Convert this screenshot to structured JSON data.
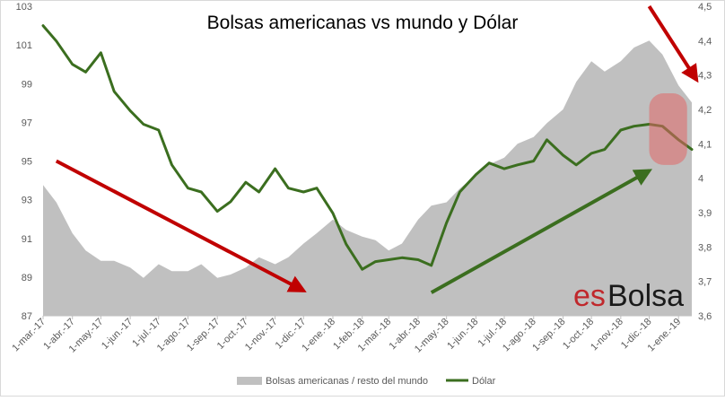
{
  "chart_data": {
    "type": "area",
    "title": "Bolsas americanas vs mundo y Dólar",
    "xlabel": "",
    "ylabel": "",
    "x_tick_labels": [
      "1-mar.-17",
      "1-abr.-17",
      "1-may.-17",
      "1-jun.-17",
      "1-jul.-17",
      "1-ago.-17",
      "1-sep.-17",
      "1-oct.-17",
      "1-nov.-17",
      "1-dic.-17",
      "1-ene.-18",
      "1-feb.-18",
      "1-mar.-18",
      "1-abr.-18",
      "1-may.-18",
      "1-jun.-18",
      "1-jul.-18",
      "1-ago.-18",
      "1-sep.-18",
      "1-oct.-18",
      "1-nov.-18",
      "1-dic.-18",
      "1-ene.-19"
    ],
    "x_range": [
      "1-mar.-17",
      "15-ene.-19"
    ],
    "y_left": {
      "ticks": [
        "87",
        "89",
        "91",
        "93",
        "95",
        "97",
        "99",
        "101",
        "103"
      ],
      "min": 87,
      "max": 103
    },
    "y_right": {
      "ticks": [
        "3,6",
        "3,7",
        "3,8",
        "3,9",
        "4",
        "4,1",
        "4,2",
        "4,3",
        "4,4",
        "4,5"
      ],
      "min": 3.6,
      "max": 4.5
    },
    "grid": false,
    "legend_position": "bottom",
    "series": [
      {
        "name": "Bolsas americanas / resto del mundo",
        "kind": "area",
        "axis": "right",
        "color": "#c0c0c0",
        "points": [
          [
            "2017-03-01",
            3.98
          ],
          [
            "2017-03-15",
            3.93
          ],
          [
            "2017-04-01",
            3.84
          ],
          [
            "2017-04-15",
            3.79
          ],
          [
            "2017-05-01",
            3.76
          ],
          [
            "2017-05-15",
            3.76
          ],
          [
            "2017-06-01",
            3.74
          ],
          [
            "2017-06-15",
            3.71
          ],
          [
            "2017-07-01",
            3.75
          ],
          [
            "2017-07-15",
            3.73
          ],
          [
            "2017-08-01",
            3.73
          ],
          [
            "2017-08-15",
            3.75
          ],
          [
            "2017-09-01",
            3.71
          ],
          [
            "2017-09-15",
            3.72
          ],
          [
            "2017-10-01",
            3.74
          ],
          [
            "2017-10-15",
            3.77
          ],
          [
            "2017-11-01",
            3.75
          ],
          [
            "2017-11-15",
            3.77
          ],
          [
            "2017-12-01",
            3.81
          ],
          [
            "2017-12-15",
            3.84
          ],
          [
            "2018-01-01",
            3.88
          ],
          [
            "2018-01-15",
            3.85
          ],
          [
            "2018-02-01",
            3.83
          ],
          [
            "2018-02-15",
            3.82
          ],
          [
            "2018-03-01",
            3.79
          ],
          [
            "2018-03-15",
            3.81
          ],
          [
            "2018-04-01",
            3.88
          ],
          [
            "2018-04-15",
            3.92
          ],
          [
            "2018-05-01",
            3.93
          ],
          [
            "2018-05-15",
            3.97
          ],
          [
            "2018-06-01",
            4.01
          ],
          [
            "2018-06-15",
            4.04
          ],
          [
            "2018-07-01",
            4.06
          ],
          [
            "2018-07-15",
            4.1
          ],
          [
            "2018-08-01",
            4.12
          ],
          [
            "2018-08-15",
            4.16
          ],
          [
            "2018-09-01",
            4.2
          ],
          [
            "2018-09-15",
            4.28
          ],
          [
            "2018-10-01",
            4.34
          ],
          [
            "2018-10-15",
            4.31
          ],
          [
            "2018-11-01",
            4.34
          ],
          [
            "2018-11-15",
            4.38
          ],
          [
            "2018-12-01",
            4.4
          ],
          [
            "2018-12-15",
            4.36
          ],
          [
            "2019-01-01",
            4.27
          ],
          [
            "2019-01-15",
            4.22
          ]
        ]
      },
      {
        "name": "Dólar",
        "kind": "line",
        "axis": "left",
        "color": "#3b6e1f",
        "points": [
          [
            "2017-03-01",
            102.0
          ],
          [
            "2017-03-15",
            101.2
          ],
          [
            "2017-04-01",
            100.0
          ],
          [
            "2017-04-15",
            99.6
          ],
          [
            "2017-05-01",
            100.6
          ],
          [
            "2017-05-15",
            98.6
          ],
          [
            "2017-06-01",
            97.6
          ],
          [
            "2017-06-15",
            96.9
          ],
          [
            "2017-07-01",
            96.6
          ],
          [
            "2017-07-15",
            94.8
          ],
          [
            "2017-08-01",
            93.6
          ],
          [
            "2017-08-15",
            93.4
          ],
          [
            "2017-09-01",
            92.4
          ],
          [
            "2017-09-15",
            92.9
          ],
          [
            "2017-10-01",
            93.9
          ],
          [
            "2017-10-15",
            93.4
          ],
          [
            "2017-11-01",
            94.6
          ],
          [
            "2017-11-15",
            93.6
          ],
          [
            "2017-12-01",
            93.4
          ],
          [
            "2017-12-15",
            93.6
          ],
          [
            "2018-01-01",
            92.3
          ],
          [
            "2018-01-15",
            90.7
          ],
          [
            "2018-02-01",
            89.4
          ],
          [
            "2018-02-15",
            89.8
          ],
          [
            "2018-03-01",
            89.9
          ],
          [
            "2018-03-15",
            90.0
          ],
          [
            "2018-04-01",
            89.9
          ],
          [
            "2018-04-15",
            89.6
          ],
          [
            "2018-05-01",
            91.8
          ],
          [
            "2018-05-15",
            93.4
          ],
          [
            "2018-06-01",
            94.3
          ],
          [
            "2018-06-15",
            94.9
          ],
          [
            "2018-07-01",
            94.6
          ],
          [
            "2018-07-15",
            94.8
          ],
          [
            "2018-08-01",
            95.0
          ],
          [
            "2018-08-15",
            96.1
          ],
          [
            "2018-09-01",
            95.3
          ],
          [
            "2018-09-15",
            94.8
          ],
          [
            "2018-10-01",
            95.4
          ],
          [
            "2018-10-15",
            95.6
          ],
          [
            "2018-11-01",
            96.6
          ],
          [
            "2018-11-15",
            96.8
          ],
          [
            "2018-12-01",
            96.9
          ],
          [
            "2018-12-15",
            96.8
          ],
          [
            "2019-01-01",
            96.1
          ],
          [
            "2019-01-15",
            95.6
          ]
        ]
      }
    ],
    "annotations": [
      {
        "kind": "arrow",
        "color": "#c00000",
        "from": [
          "2017-03-15",
          95.0
        ],
        "to": [
          "2017-12-01",
          88.3
        ]
      },
      {
        "kind": "arrow",
        "color": "#3b6e1f",
        "from": [
          "2018-04-15",
          88.2
        ],
        "to": [
          "2018-12-01",
          94.5
        ]
      },
      {
        "kind": "arrow",
        "color": "#c00000",
        "from": [
          "2018-12-01",
          103.0
        ],
        "to": [
          "2019-01-20",
          99.2
        ]
      },
      {
        "kind": "highlight-ellipse",
        "color": "#e06666",
        "from": [
          "2018-12-01",
          94.8
        ],
        "to": [
          "2019-01-10",
          98.5
        ]
      }
    ]
  },
  "watermark": {
    "part1": "es",
    "part2": "Bolsa",
    "color_es": "#c0282c",
    "color_bolsa": "#1a1a1a"
  }
}
